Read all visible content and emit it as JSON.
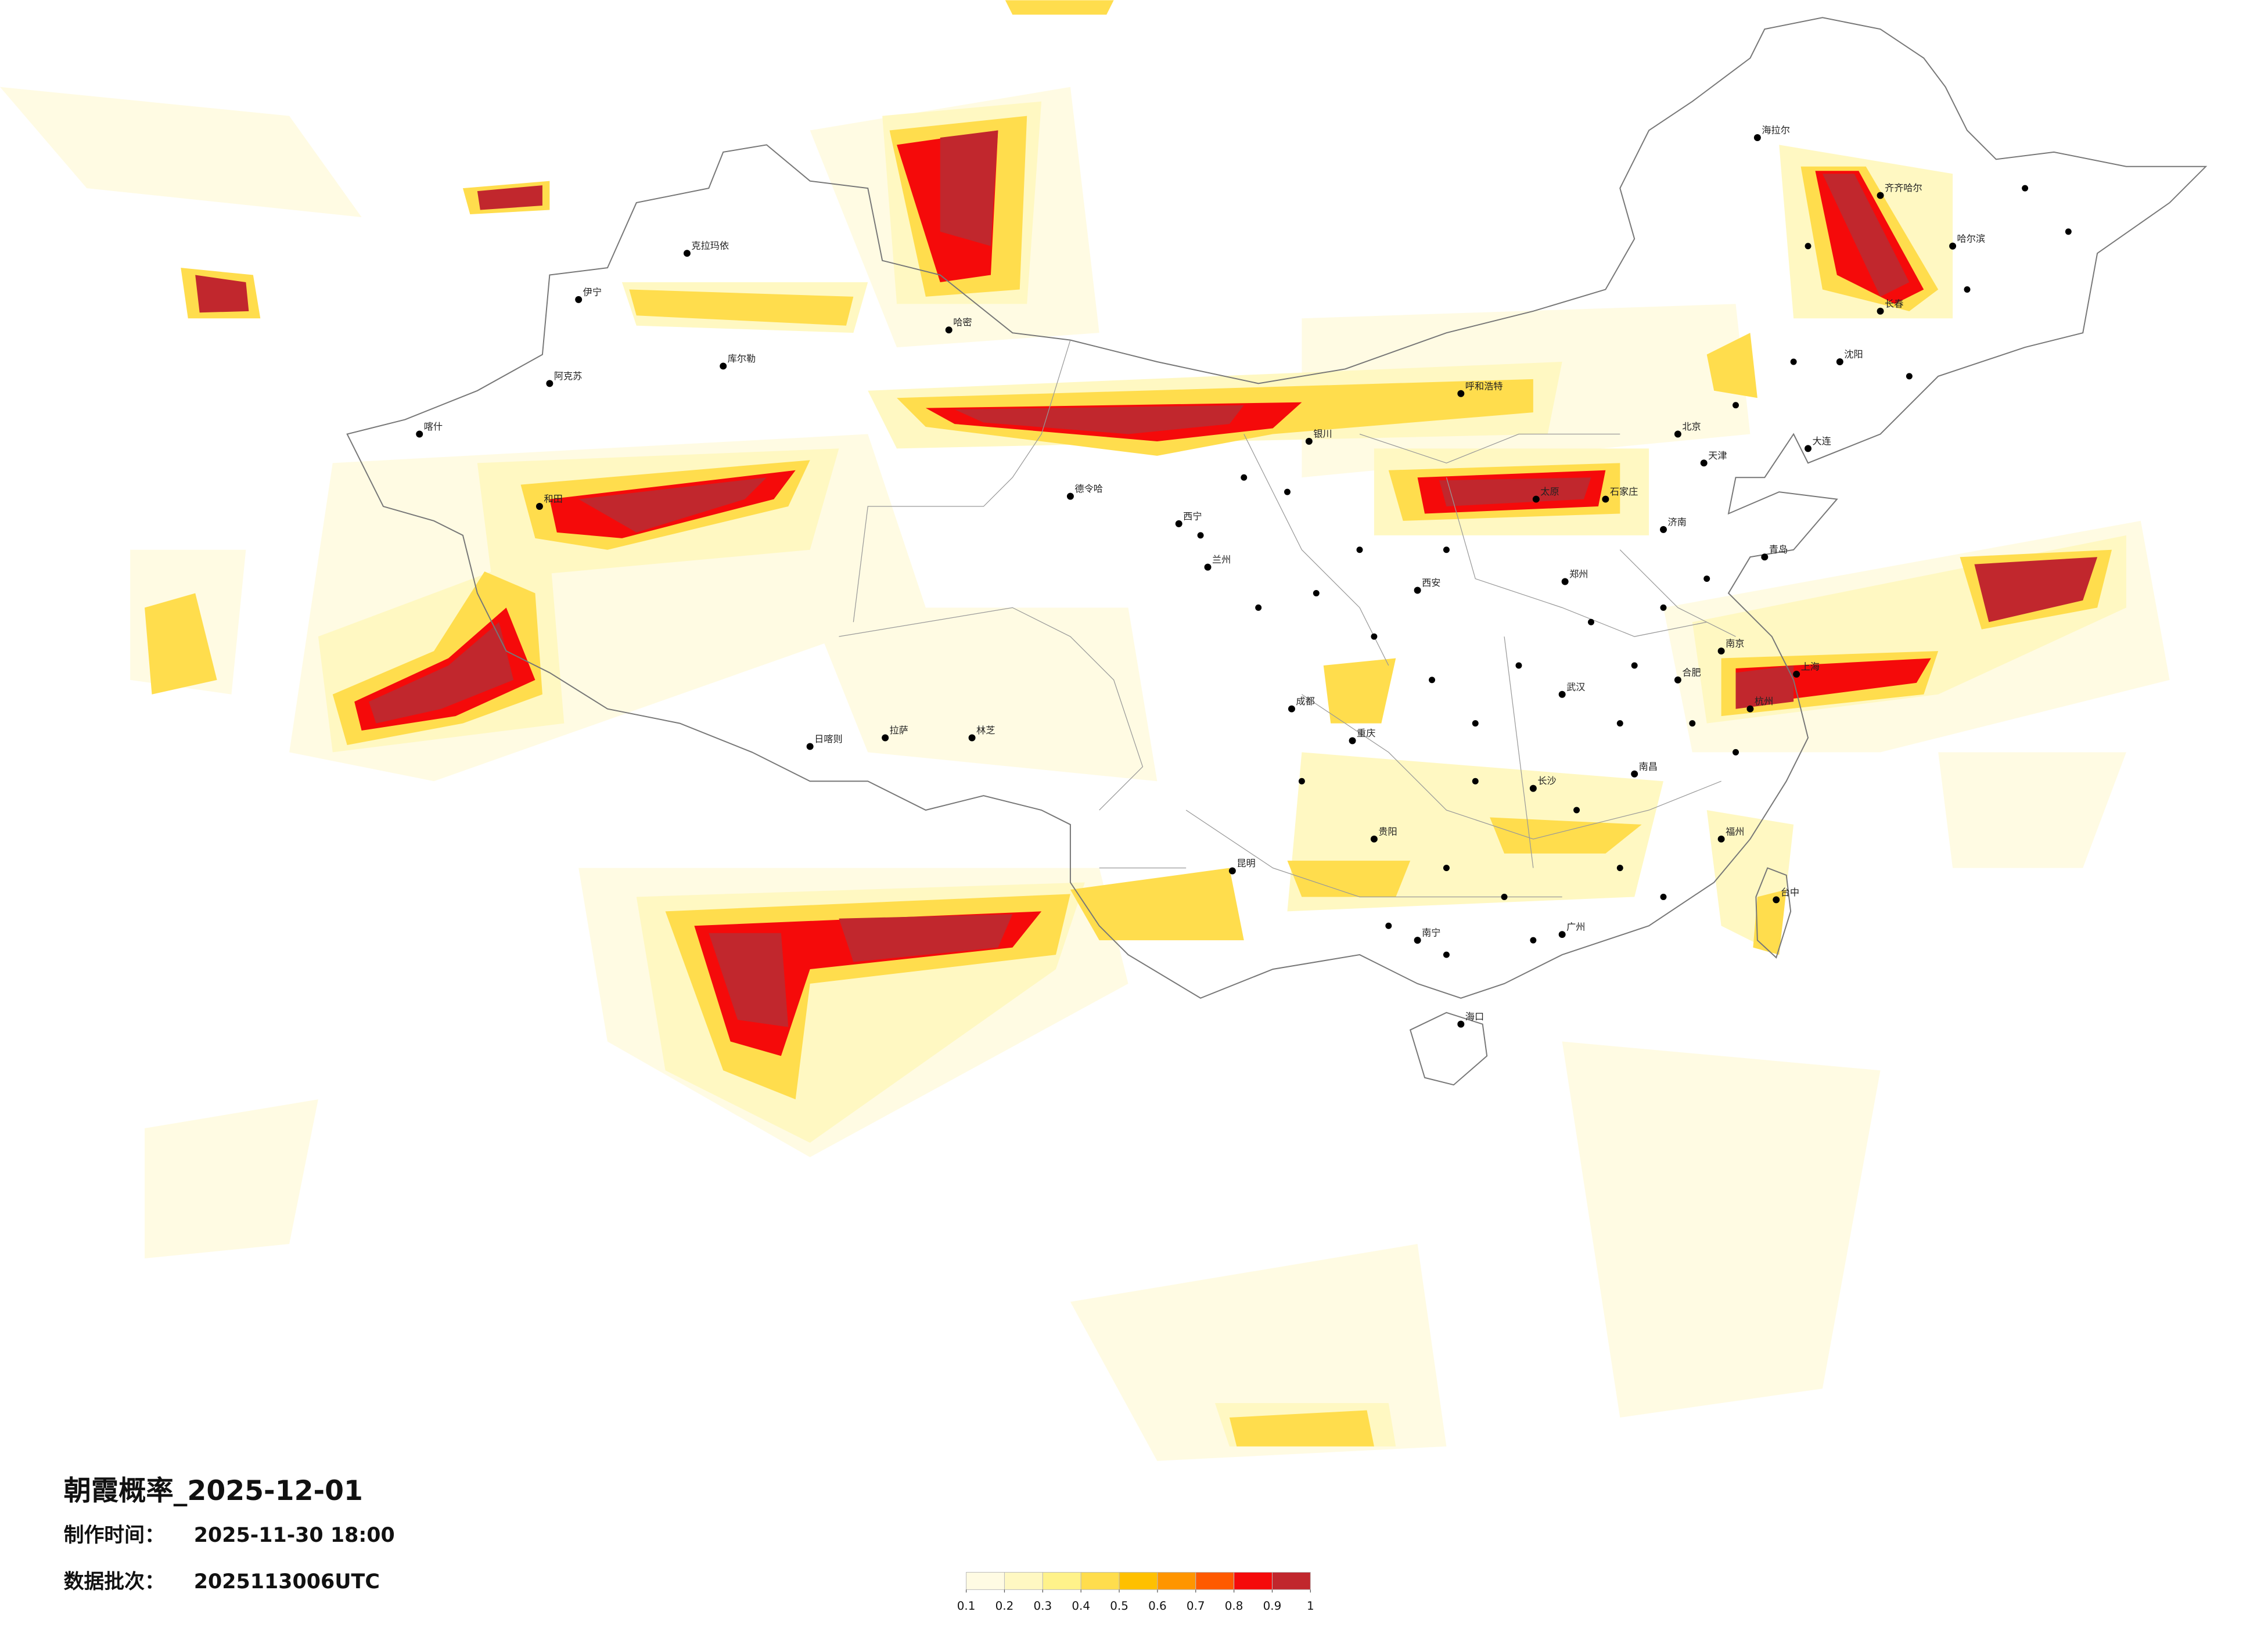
{
  "title": "朝霞概率_2025-12-01",
  "production_time": {
    "label": "制作时间：",
    "value": "2025-11-30 18:00"
  },
  "batch": {
    "label": "数据批次：",
    "value": "2025113006UTC"
  },
  "legend": {
    "ticks": [
      0.1,
      0.2,
      0.3,
      0.4,
      0.5,
      0.6,
      0.7,
      0.8,
      0.9,
      1
    ],
    "colors": [
      "#fffbe3",
      "#fff8c2",
      "#fff28a",
      "#ffdd4d",
      "#ffc000",
      "#ff9500",
      "#ff5a00",
      "#f50a0a",
      "#c1272d"
    ]
  },
  "cities": [
    "喀什",
    "阿克苏",
    "伊宁",
    "克拉玛依",
    "库尔勒",
    "和田",
    "哈密",
    "德令哈",
    "拉萨",
    "日喀则",
    "林芝",
    "西宁",
    "兰州",
    "银川",
    "呼和浩特",
    "北京",
    "天津",
    "石家庄",
    "太原",
    "济南",
    "郑州",
    "西安",
    "成都",
    "重庆",
    "贵阳",
    "昆明",
    "南宁",
    "广州",
    "海口",
    "长沙",
    "武汉",
    "南昌",
    "福州",
    "杭州",
    "上海",
    "南京",
    "合肥",
    "沈阳",
    "长春",
    "哈尔滨",
    "齐齐哈尔",
    "海拉尔",
    "大连",
    "青岛",
    "台中"
  ]
}
